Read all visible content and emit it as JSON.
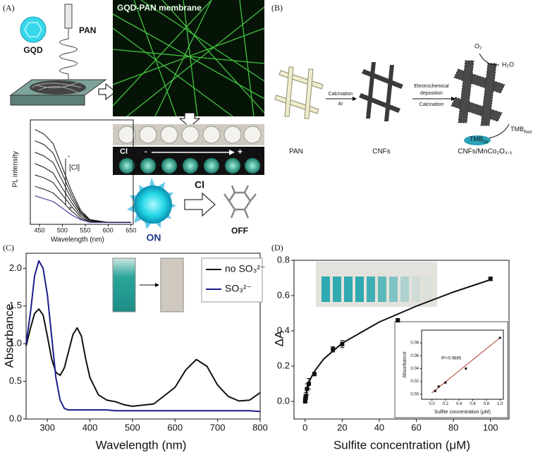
{
  "panel_a": {
    "label": "(A)",
    "gqd": "GQD",
    "pan": "PAN",
    "membrane": "GQD-PAN membrane",
    "vial_ion": "Cl",
    "vial_minus": "-",
    "vial_plus": "+",
    "pl_ion": "[Cl]",
    "pl_minus": "-",
    "pl_plus": "+",
    "on": "ON",
    "off": "OFF",
    "arrow_ion": "Cl"
  },
  "panel_b": {
    "label": "(B)",
    "step1": [
      "Calcination",
      "Ar"
    ],
    "step2": [
      "Electrochemical",
      "deposition",
      "Calcination"
    ],
    "o2": "O₂",
    "h2o": "H₂O",
    "tmb_red": {
      "text": "TMB",
      "sub": "Red"
    },
    "tmb_ox": {
      "text": "TMB",
      "sub": "Ox"
    },
    "pan": "PAN",
    "cnfs": "CNFs",
    "product": "CNFs/MnCo₂O₄.₅"
  },
  "panel_c": {
    "label": "(C)"
  },
  "panel_d": {
    "label": "(D)"
  },
  "chart_data": [
    {
      "type": "line",
      "xlabel": "Wavelength (nm)",
      "ylabel": "PL intensity",
      "x": [
        440,
        460,
        480,
        500,
        520,
        540,
        560,
        600,
        650
      ],
      "xlim": [
        430,
        655
      ],
      "ylim": [
        0,
        1.1
      ],
      "xticks": [
        450,
        500,
        550,
        600,
        650
      ],
      "series": [
        {
          "color": "#111111",
          "values": [
            1.0,
            0.95,
            0.85,
            0.6,
            0.35,
            0.15,
            0.05,
            0.02,
            0.02
          ]
        },
        {
          "color": "#111111",
          "values": [
            0.88,
            0.84,
            0.75,
            0.53,
            0.31,
            0.13,
            0.05,
            0.02,
            0.02
          ]
        },
        {
          "color": "#111111",
          "values": [
            0.76,
            0.72,
            0.65,
            0.46,
            0.27,
            0.12,
            0.04,
            0.02,
            0.02
          ]
        },
        {
          "color": "#111111",
          "values": [
            0.64,
            0.6,
            0.54,
            0.38,
            0.23,
            0.1,
            0.04,
            0.02,
            0.02
          ]
        },
        {
          "color": "#111111",
          "values": [
            0.52,
            0.49,
            0.44,
            0.31,
            0.19,
            0.08,
            0.03,
            0.02,
            0.02
          ]
        },
        {
          "color": "#111111",
          "values": [
            0.4,
            0.37,
            0.33,
            0.24,
            0.14,
            0.06,
            0.03,
            0.02,
            0.02
          ]
        },
        {
          "color": "#1c1c8c",
          "values": [
            0.3,
            0.27,
            0.24,
            0.17,
            0.1,
            0.05,
            0.02,
            0.02,
            0.02
          ]
        }
      ]
    },
    {
      "type": "line",
      "xlabel": "Wavelength (nm)",
      "ylabel": "Absorbance",
      "x": [
        250,
        260,
        270,
        280,
        290,
        300,
        310,
        320,
        330,
        340,
        350,
        360,
        370,
        380,
        390,
        400,
        420,
        440,
        460,
        480,
        500,
        550,
        600,
        625,
        650,
        675,
        700,
        725,
        750,
        775,
        800
      ],
      "xlim": [
        250,
        800
      ],
      "ylim": [
        0,
        2.2
      ],
      "xticks": [
        300,
        400,
        500,
        600,
        700,
        800
      ],
      "yticks": [
        {
          "value": 0,
          "label": "0.0"
        },
        0.5,
        {
          "value": 1,
          "label": "1.0"
        },
        1.5,
        {
          "value": 2,
          "label": "2.0"
        }
      ],
      "series": [
        {
          "name": "no SO₃²⁻",
          "color": "#111111",
          "values": [
            0.97,
            1.2,
            1.4,
            1.46,
            1.38,
            1.1,
            0.8,
            0.62,
            0.58,
            0.68,
            0.9,
            1.12,
            1.21,
            1.1,
            0.8,
            0.55,
            0.32,
            0.25,
            0.23,
            0.19,
            0.17,
            0.2,
            0.42,
            0.65,
            0.79,
            0.7,
            0.45,
            0.3,
            0.24,
            0.25,
            0.35
          ]
        },
        {
          "name": "SO₃²⁻",
          "color": "#1c1c8c",
          "values": [
            1.0,
            1.4,
            1.9,
            2.1,
            2.0,
            1.65,
            1.1,
            0.55,
            0.25,
            0.14,
            0.12,
            0.12,
            0.12,
            0.12,
            0.12,
            0.12,
            0.12,
            0.12,
            0.11,
            0.11,
            0.11,
            0.11,
            0.11,
            0.11,
            0.11,
            0.11,
            0.11,
            0.11,
            0.11,
            0.11,
            0.1
          ]
        }
      ]
    },
    {
      "type": "scatter",
      "xlabel": "Sulfite concentration (μM)",
      "ylabel": "ΔA",
      "color": "#111111",
      "x": [
        0,
        0.1,
        0.2,
        0.5,
        1,
        2,
        5,
        15,
        20,
        50,
        100
      ],
      "values": [
        0,
        0.01,
        0.02,
        0.03,
        0.07,
        0.1,
        0.155,
        0.295,
        0.325,
        0.46,
        0.695
      ],
      "errors": [
        0.01,
        0.01,
        0.02,
        0.02,
        0.03,
        0.03,
        0.01,
        0.015,
        0.02,
        0.01,
        0.01
      ],
      "fit": {
        "color": "#111111",
        "x": [
          0,
          1,
          2,
          5,
          10,
          20,
          40,
          60,
          80,
          100
        ],
        "values": [
          0,
          0.07,
          0.11,
          0.17,
          0.24,
          0.33,
          0.45,
          0.54,
          0.62,
          0.69
        ]
      },
      "xlim": [
        -6,
        110
      ],
      "ylim": [
        -0.1,
        0.8
      ],
      "xticks": [
        0,
        20,
        40,
        60,
        80,
        100
      ],
      "yticks": [
        {
          "value": 0,
          "label": "0.0"
        },
        0.2,
        0.4,
        0.6,
        0.8
      ]
    },
    {
      "type": "scatter",
      "xlabel": "Sulfite concentration (μM)",
      "ylabel": "Absorbance",
      "annotation": "R²=0.9885",
      "color": "#111111",
      "x": [
        0.05,
        0.1,
        0.2,
        0.5,
        1.0
      ],
      "values": [
        0.005,
        0.012,
        0.018,
        0.04,
        0.088
      ],
      "fit": {
        "color": "#b0392c",
        "x": [
          0,
          1
        ],
        "values": [
          0.002,
          0.088
        ]
      },
      "xlim": [
        -0.15,
        1.05
      ],
      "ylim": [
        -0.008,
        0.1
      ],
      "xticks": [
        {
          "value": 0,
          "label": "0.0"
        },
        0.2,
        0.4,
        0.6,
        0.8,
        {
          "value": 1,
          "label": "1.0"
        }
      ],
      "yticks": [
        {
          "value": 0,
          "label": "0.00"
        },
        {
          "value": 0.02,
          "label": "0.02"
        },
        {
          "value": 0.04,
          "label": "0.04"
        },
        {
          "value": 0.06,
          "label": "0.06"
        },
        {
          "value": 0.08,
          "label": "0.08"
        }
      ]
    }
  ]
}
